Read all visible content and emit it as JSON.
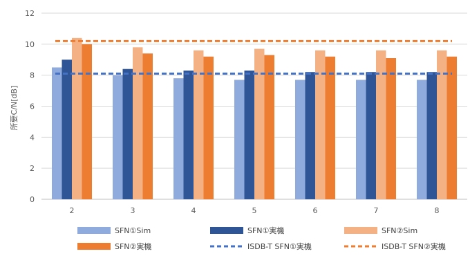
{
  "chart_data": {
    "type": "bar",
    "ylabel": "所要C/N[dB]",
    "xlabel": "",
    "ylim": [
      0,
      12
    ],
    "yticks": [
      0,
      2,
      4,
      6,
      8,
      10,
      12
    ],
    "grid": true,
    "legend_position": "bottom",
    "categories": [
      "2",
      "3",
      "4",
      "5",
      "6",
      "7",
      "8"
    ],
    "series": [
      {
        "name": "SFN①Sim",
        "color": "#8FAADC",
        "values": [
          8.5,
          8.0,
          7.8,
          7.7,
          7.7,
          7.7,
          7.7
        ]
      },
      {
        "name": "SFN①実機",
        "color": "#2F5597",
        "values": [
          9.0,
          8.4,
          8.3,
          8.3,
          8.2,
          8.2,
          8.2
        ]
      },
      {
        "name": "SFN②Sim",
        "color": "#F4B183",
        "values": [
          10.4,
          9.8,
          9.6,
          9.7,
          9.6,
          9.6,
          9.6
        ]
      },
      {
        "name": "SFN②実機",
        "color": "#ED7D31",
        "values": [
          10.0,
          9.4,
          9.2,
          9.3,
          9.2,
          9.1,
          9.2
        ]
      }
    ],
    "reference_lines": [
      {
        "name": "ISDB-T SFN①実機",
        "color": "#4472C4",
        "style": "dashed",
        "value": 8.1
      },
      {
        "name": "ISDB-T SFN②実機",
        "color": "#ED7D31",
        "style": "dashed",
        "value": 10.2
      }
    ]
  }
}
